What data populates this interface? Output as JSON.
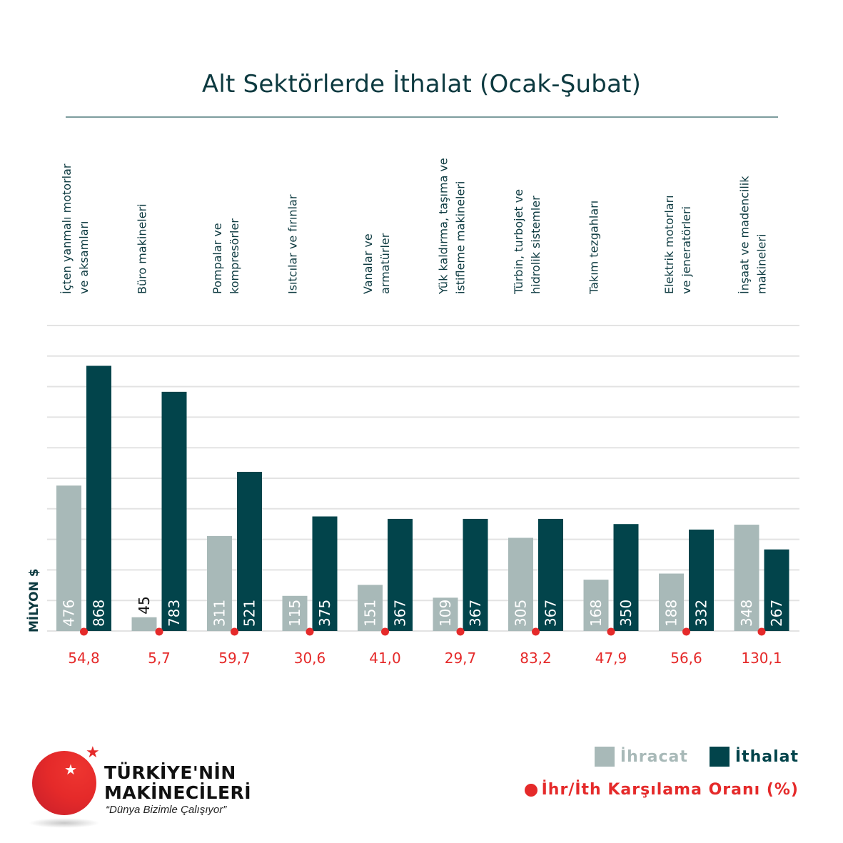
{
  "title": "Alt Sektörlerde İthalat (Ocak-Şubat)",
  "colors": {
    "ihracat": "#a8b9b8",
    "ithalat": "#02444b",
    "ratio": "#e52a2a",
    "title": "#0d3a40",
    "grid": "#e3e3e3"
  },
  "chart_data": {
    "type": "bar",
    "title": "Alt Sektörlerde İthalat (Ocak-Şubat)",
    "ylabel": "MİLYON $",
    "xlabel": "",
    "ylim": [
      0,
      1000
    ],
    "grid": true,
    "grid_step": 100,
    "legend_position": "bottom-right",
    "categories": [
      "İçten yanmalı motorlar ve aksamları",
      "Büro makineleri",
      "Pompalar ve kompresörler",
      "Isıtcılar ve fırınlar",
      "Vanalar ve armatürler",
      "Yük kaldırma, taşıma ve istifleme makineleri",
      "Türbin, turbojet ve hidrolik sistemler",
      "Takım tezgahları",
      "Elektrik motorları ve jeneratörleri",
      "İnşaat ve madencilik makineleri"
    ],
    "category_lines": [
      [
        "İçten yanmalı motorlar",
        "ve aksamları"
      ],
      [
        "Büro makineleri"
      ],
      [
        "Pompalar ve",
        "kompresörler"
      ],
      [
        "Isıtcılar ve fırınlar"
      ],
      [
        "Vanalar ve",
        "armatürler"
      ],
      [
        "Yük kaldırma, taşıma ve",
        "istifleme makineleri"
      ],
      [
        "Türbin, turbojet ve",
        "hidrolik sistemler"
      ],
      [
        "Takım tezgahları"
      ],
      [
        "Elektrik motorları",
        "ve jeneratörleri"
      ],
      [
        "İnşaat ve madencilik",
        "makineleri"
      ]
    ],
    "series": [
      {
        "name": "İhracat",
        "values": [
          476,
          45,
          311,
          115,
          151,
          109,
          305,
          168,
          188,
          348
        ]
      },
      {
        "name": "İthalat",
        "values": [
          868,
          783,
          521,
          375,
          367,
          367,
          367,
          350,
          332,
          267
        ]
      }
    ],
    "ratio": {
      "name": "İhr/İth Karşılama Oranı (%)",
      "values": [
        "54,8",
        "5,7",
        "59,7",
        "30,6",
        "41,0",
        "29,7",
        "83,2",
        "47,9",
        "56,6",
        "130,1"
      ]
    }
  },
  "legend": {
    "ihracat": "İhracat",
    "ithalat": "İthalat",
    "ratio": "İhr/İth Karşılama Oranı (%)"
  },
  "logo": {
    "line1": "TÜRKİYE'NİN",
    "line2": "MAKİNECİLERİ",
    "slogan": "“Dünya Bizimle Çalışıyor”"
  }
}
